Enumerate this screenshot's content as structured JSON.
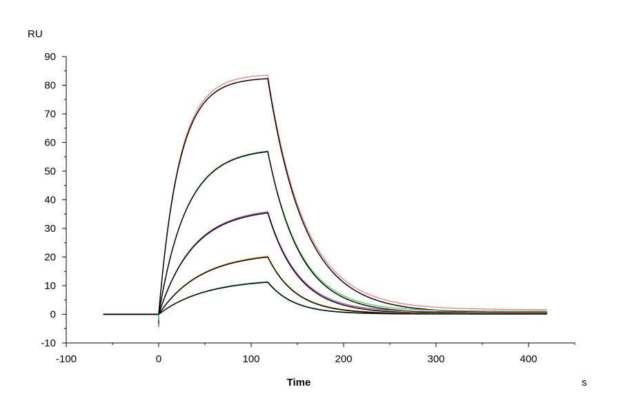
{
  "chart_data": {
    "type": "line",
    "title": "",
    "xlabel": "Time",
    "ylabel": "",
    "x_unit": "s",
    "y_unit": "RU",
    "xlim": [
      -100,
      450
    ],
    "ylim": [
      -10,
      90
    ],
    "x_ticks": [
      -100,
      0,
      100,
      200,
      300,
      400
    ],
    "y_ticks": [
      -10,
      0,
      10,
      20,
      30,
      40,
      50,
      60,
      70,
      80,
      90
    ],
    "x_tick_labels": [
      "-100",
      "0",
      "100",
      "200",
      "300",
      "400"
    ],
    "y_tick_labels": [
      "-10",
      "0",
      "10",
      "20",
      "30",
      "40",
      "50",
      "60",
      "70",
      "80",
      "90"
    ],
    "grid": false,
    "legend": "none",
    "phases": {
      "baseline_start": -60,
      "injection_start": 0,
      "injection_end": 118,
      "end": 420
    },
    "series": [
      {
        "kind": "measured",
        "color": "#f0736d",
        "plateau": 83.5,
        "tau_on": 22,
        "tau_off": 40,
        "tail": 1.6,
        "points": [
          [
            -60,
            0
          ],
          [
            0,
            0
          ],
          [
            25,
            57
          ],
          [
            50,
            75
          ],
          [
            75,
            80.5
          ],
          [
            100,
            82.5
          ],
          [
            118,
            83.5
          ],
          [
            140,
            55
          ],
          [
            160,
            33
          ],
          [
            200,
            13
          ],
          [
            250,
            5
          ],
          [
            300,
            2.8
          ],
          [
            350,
            2
          ],
          [
            420,
            1.6
          ]
        ]
      },
      {
        "kind": "fit",
        "color": "#000000",
        "plateau": 82.3,
        "tau_on": 22,
        "tau_off": 40,
        "tail": 0.6,
        "points": [
          [
            -60,
            0
          ],
          [
            0,
            0
          ],
          [
            25,
            56
          ],
          [
            50,
            74
          ],
          [
            75,
            79.5
          ],
          [
            100,
            81.5
          ],
          [
            118,
            82.3
          ],
          [
            140,
            53
          ],
          [
            160,
            32
          ],
          [
            200,
            12
          ],
          [
            250,
            4
          ],
          [
            300,
            1.6
          ],
          [
            350,
            0.9
          ],
          [
            420,
            0.6
          ]
        ]
      },
      {
        "kind": "measured",
        "color": "#3cc83c",
        "plateau": 57,
        "tau_on": 30,
        "tau_off": 35,
        "tail": 1.1,
        "points": [
          [
            -60,
            0
          ],
          [
            0,
            0
          ],
          [
            25,
            32
          ],
          [
            50,
            45.5
          ],
          [
            75,
            52.5
          ],
          [
            100,
            55.5
          ],
          [
            118,
            57
          ],
          [
            140,
            36
          ],
          [
            160,
            24
          ],
          [
            200,
            9
          ],
          [
            250,
            3.5
          ],
          [
            300,
            2
          ],
          [
            350,
            1.4
          ],
          [
            420,
            1.1
          ]
        ]
      },
      {
        "kind": "fit",
        "color": "#000000",
        "plateau": 56.8,
        "tau_on": 30,
        "tau_off": 35,
        "tail": 0.4,
        "points": [
          [
            -60,
            0
          ],
          [
            0,
            0
          ],
          [
            25,
            31.5
          ],
          [
            50,
            45
          ],
          [
            75,
            52
          ],
          [
            100,
            55.2
          ],
          [
            118,
            56.8
          ],
          [
            140,
            35
          ],
          [
            160,
            23
          ],
          [
            200,
            8
          ],
          [
            250,
            2.8
          ],
          [
            300,
            1.2
          ],
          [
            350,
            0.6
          ],
          [
            420,
            0.4
          ]
        ]
      },
      {
        "kind": "measured",
        "color": "#a03ca0",
        "plateau": 35.8,
        "tau_on": 37,
        "tau_off": 33,
        "tail": 0.8,
        "points": [
          [
            -60,
            0
          ],
          [
            0,
            0
          ],
          [
            25,
            17.5
          ],
          [
            50,
            26
          ],
          [
            75,
            31.5
          ],
          [
            100,
            34.5
          ],
          [
            118,
            35.8
          ],
          [
            140,
            23
          ],
          [
            160,
            15
          ],
          [
            200,
            6
          ],
          [
            250,
            2.3
          ],
          [
            300,
            1.2
          ],
          [
            350,
            0.9
          ],
          [
            420,
            0.8
          ]
        ]
      },
      {
        "kind": "fit",
        "color": "#000000",
        "plateau": 35.4,
        "tau_on": 37,
        "tau_off": 33,
        "tail": 0.3,
        "points": [
          [
            -60,
            0
          ],
          [
            0,
            0
          ],
          [
            25,
            17
          ],
          [
            50,
            25.5
          ],
          [
            75,
            31
          ],
          [
            100,
            34
          ],
          [
            118,
            35.4
          ],
          [
            140,
            22.5
          ],
          [
            160,
            14.5
          ],
          [
            200,
            5.5
          ],
          [
            250,
            1.8
          ],
          [
            300,
            0.7
          ],
          [
            350,
            0.4
          ],
          [
            420,
            0.3
          ]
        ]
      },
      {
        "kind": "measured",
        "color": "#e6aa28",
        "plateau": 20.3,
        "tau_on": 45,
        "tau_off": 30,
        "tail": 0.4,
        "points": [
          [
            -60,
            0
          ],
          [
            0,
            0
          ],
          [
            25,
            8.5
          ],
          [
            50,
            13.5
          ],
          [
            75,
            17
          ],
          [
            100,
            19.3
          ],
          [
            118,
            20.3
          ],
          [
            140,
            12.5
          ],
          [
            160,
            8.2
          ],
          [
            200,
            3
          ],
          [
            250,
            1.2
          ],
          [
            300,
            0.6
          ],
          [
            350,
            0.5
          ],
          [
            420,
            0.4
          ]
        ]
      },
      {
        "kind": "fit",
        "color": "#000000",
        "plateau": 20,
        "tau_on": 45,
        "tau_off": 30,
        "tail": 0.2,
        "points": [
          [
            -60,
            0
          ],
          [
            0,
            0
          ],
          [
            25,
            8.3
          ],
          [
            50,
            13.2
          ],
          [
            75,
            16.8
          ],
          [
            100,
            19
          ],
          [
            118,
            20
          ],
          [
            140,
            12.3
          ],
          [
            160,
            8
          ],
          [
            200,
            2.8
          ],
          [
            250,
            1
          ],
          [
            300,
            0.4
          ],
          [
            350,
            0.3
          ],
          [
            420,
            0.2
          ]
        ]
      },
      {
        "kind": "measured",
        "color": "#2ab4b4",
        "plateau": 11.4,
        "tau_on": 50,
        "tau_off": 28,
        "tail": 0.2,
        "points": [
          [
            -60,
            0
          ],
          [
            0,
            0
          ],
          [
            25,
            4.5
          ],
          [
            50,
            7.5
          ],
          [
            75,
            9.5
          ],
          [
            100,
            10.8
          ],
          [
            118,
            11.4
          ],
          [
            140,
            6.5
          ],
          [
            160,
            4.2
          ],
          [
            200,
            1.5
          ],
          [
            250,
            0.5
          ],
          [
            300,
            0.3
          ],
          [
            350,
            0.2
          ],
          [
            420,
            0.2
          ]
        ]
      },
      {
        "kind": "fit",
        "color": "#000000",
        "plateau": 11.2,
        "tau_on": 50,
        "tau_off": 28,
        "tail": 0.1,
        "points": [
          [
            -60,
            0
          ],
          [
            0,
            0
          ],
          [
            25,
            4.4
          ],
          [
            50,
            7.4
          ],
          [
            75,
            9.3
          ],
          [
            100,
            10.6
          ],
          [
            118,
            11.2
          ],
          [
            140,
            6.3
          ],
          [
            160,
            4
          ],
          [
            200,
            1.3
          ],
          [
            250,
            0.4
          ],
          [
            300,
            0.1
          ],
          [
            350,
            0.1
          ],
          [
            420,
            0.1
          ]
        ]
      }
    ]
  }
}
